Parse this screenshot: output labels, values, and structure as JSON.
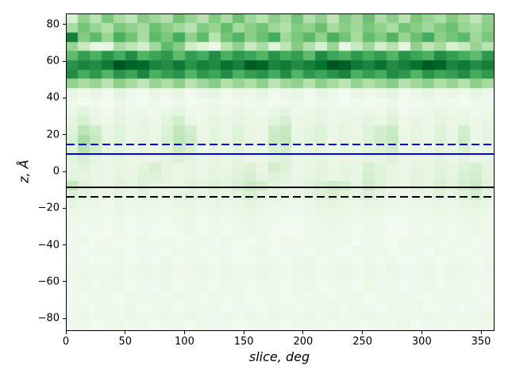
{
  "chart_data": {
    "type": "heatmap",
    "title": "",
    "xlabel": "slice, deg",
    "ylabel": "z, Å",
    "xlim": [
      0,
      360
    ],
    "ylim": [
      -86,
      86
    ],
    "x_ticks": [
      0,
      50,
      100,
      150,
      200,
      250,
      300,
      350
    ],
    "x_tick_labels": [
      "0",
      "50",
      "100",
      "150",
      "200",
      "250",
      "300",
      "350"
    ],
    "y_ticks": [
      80,
      60,
      40,
      20,
      0,
      -20,
      -40,
      -60,
      -80
    ],
    "y_tick_labels": [
      "80",
      "60",
      "40",
      "20",
      "0",
      "−20",
      "−40",
      "−60",
      "−80"
    ],
    "grid": false,
    "legend": null,
    "colormap": "Greens",
    "colormap_stops": [
      [
        0.0,
        "#f7fcf5"
      ],
      [
        0.125,
        "#e5f5e0"
      ],
      [
        0.25,
        "#c7e9c0"
      ],
      [
        0.375,
        "#a1d99b"
      ],
      [
        0.5,
        "#74c476"
      ],
      [
        0.625,
        "#41ab5d"
      ],
      [
        0.75,
        "#238b45"
      ],
      [
        0.875,
        "#006d2c"
      ],
      [
        1.0,
        "#00441b"
      ]
    ],
    "x_bin_deg": 10,
    "z_bin_angstrom": 5,
    "values_note": "rows from z=+86 (top) to z=-86 (bottom), 36 angular bins of 10 deg; intensities 0-1 estimated from pixels",
    "values": [
      [
        0.18,
        0.42,
        0.3,
        0.48,
        0.35,
        0.28,
        0.45,
        0.38,
        0.32,
        0.5,
        0.4,
        0.3,
        0.46,
        0.35,
        0.52,
        0.38,
        0.3,
        0.44,
        0.36,
        0.5,
        0.32,
        0.42,
        0.28,
        0.46,
        0.38,
        0.52,
        0.34,
        0.44,
        0.3,
        0.48,
        0.4,
        0.34,
        0.46,
        0.38,
        0.28,
        0.42
      ],
      [
        0.35,
        0.5,
        0.4,
        0.32,
        0.48,
        0.42,
        0.36,
        0.52,
        0.44,
        0.38,
        0.3,
        0.46,
        0.4,
        0.54,
        0.36,
        0.44,
        0.5,
        0.38,
        0.32,
        0.46,
        0.42,
        0.52,
        0.36,
        0.44,
        0.38,
        0.48,
        0.42,
        0.34,
        0.5,
        0.44,
        0.38,
        0.46,
        0.52,
        0.4,
        0.36,
        0.44
      ],
      [
        0.8,
        0.45,
        0.55,
        0.4,
        0.6,
        0.5,
        0.35,
        0.55,
        0.48,
        0.62,
        0.42,
        0.55,
        0.3,
        0.5,
        0.58,
        0.44,
        0.52,
        0.62,
        0.38,
        0.48,
        0.56,
        0.42,
        0.6,
        0.5,
        0.36,
        0.54,
        0.46,
        0.58,
        0.4,
        0.52,
        0.62,
        0.44,
        0.5,
        0.56,
        0.38,
        0.48
      ],
      [
        0.4,
        0.25,
        0.1,
        0.12,
        0.35,
        0.28,
        0.2,
        0.38,
        0.55,
        0.45,
        0.22,
        0.15,
        0.08,
        0.3,
        0.42,
        0.25,
        0.35,
        0.15,
        0.28,
        0.45,
        0.32,
        0.18,
        0.4,
        0.1,
        0.25,
        0.38,
        0.2,
        0.3,
        0.12,
        0.42,
        0.28,
        0.35,
        0.18,
        0.25,
        0.4,
        0.3
      ],
      [
        0.55,
        0.68,
        0.6,
        0.72,
        0.62,
        0.75,
        0.58,
        0.65,
        0.7,
        0.55,
        0.68,
        0.62,
        0.75,
        0.6,
        0.7,
        0.65,
        0.58,
        0.72,
        0.62,
        0.68,
        0.55,
        0.75,
        0.65,
        0.6,
        0.7,
        0.62,
        0.68,
        0.58,
        0.72,
        0.65,
        0.6,
        0.75,
        0.68,
        0.62,
        0.55,
        0.7
      ],
      [
        0.72,
        0.78,
        0.75,
        0.82,
        0.95,
        0.9,
        0.88,
        0.78,
        0.75,
        0.82,
        0.72,
        0.8,
        0.76,
        0.85,
        0.8,
        0.93,
        0.9,
        0.78,
        0.82,
        0.75,
        0.8,
        0.85,
        0.95,
        0.92,
        0.82,
        0.78,
        0.85,
        0.75,
        0.8,
        0.85,
        0.93,
        0.9,
        0.78,
        0.82,
        0.75,
        0.8
      ],
      [
        0.75,
        0.62,
        0.7,
        0.58,
        0.72,
        0.65,
        0.78,
        0.6,
        0.68,
        0.72,
        0.58,
        0.7,
        0.65,
        0.75,
        0.6,
        0.68,
        0.72,
        0.62,
        0.75,
        0.58,
        0.7,
        0.65,
        0.72,
        0.78,
        0.6,
        0.68,
        0.62,
        0.75,
        0.7,
        0.58,
        0.72,
        0.65,
        0.68,
        0.75,
        0.62,
        0.7
      ],
      [
        0.42,
        0.35,
        0.4,
        0.3,
        0.44,
        0.36,
        0.28,
        0.4,
        0.34,
        0.43,
        0.3,
        0.38,
        0.45,
        0.32,
        0.4,
        0.34,
        0.43,
        0.29,
        0.38,
        0.42,
        0.31,
        0.43,
        0.36,
        0.29,
        0.41,
        0.33,
        0.39,
        0.45,
        0.31,
        0.38,
        0.43,
        0.34,
        0.4,
        0.31,
        0.43,
        0.36
      ],
      [
        0.12,
        0.07,
        0.1,
        0.05,
        0.13,
        0.08,
        0.04,
        0.1,
        0.07,
        0.12,
        0.05,
        0.09,
        0.13,
        0.06,
        0.1,
        0.08,
        0.12,
        0.04,
        0.09,
        0.11,
        0.06,
        0.12,
        0.08,
        0.04,
        0.1,
        0.07,
        0.09,
        0.13,
        0.05,
        0.09,
        0.12,
        0.07,
        0.09,
        0.05,
        0.11,
        0.08
      ],
      [
        0.07,
        0.04,
        0.06,
        0.03,
        0.08,
        0.05,
        0.03,
        0.06,
        0.04,
        0.07,
        0.03,
        0.05,
        0.08,
        0.04,
        0.06,
        0.05,
        0.07,
        0.03,
        0.05,
        0.07,
        0.04,
        0.07,
        0.05,
        0.03,
        0.06,
        0.04,
        0.05,
        0.08,
        0.03,
        0.05,
        0.07,
        0.05,
        0.05,
        0.03,
        0.06,
        0.05
      ],
      [
        0.09,
        0.14,
        0.08,
        0.05,
        0.1,
        0.06,
        0.08,
        0.05,
        0.09,
        0.13,
        0.07,
        0.05,
        0.09,
        0.06,
        0.1,
        0.07,
        0.05,
        0.09,
        0.12,
        0.06,
        0.08,
        0.1,
        0.05,
        0.08,
        0.06,
        0.09,
        0.07,
        0.12,
        0.05,
        0.08,
        0.06,
        0.1,
        0.07,
        0.09,
        0.05,
        0.08
      ],
      [
        0.12,
        0.18,
        0.1,
        0.07,
        0.12,
        0.08,
        0.1,
        0.07,
        0.14,
        0.2,
        0.09,
        0.07,
        0.11,
        0.08,
        0.12,
        0.09,
        0.07,
        0.14,
        0.18,
        0.08,
        0.1,
        0.12,
        0.07,
        0.1,
        0.08,
        0.12,
        0.09,
        0.16,
        0.07,
        0.1,
        0.08,
        0.12,
        0.09,
        0.11,
        0.07,
        0.1
      ],
      [
        0.15,
        0.28,
        0.22,
        0.1,
        0.14,
        0.09,
        0.12,
        0.08,
        0.16,
        0.26,
        0.2,
        0.08,
        0.13,
        0.09,
        0.15,
        0.1,
        0.08,
        0.22,
        0.25,
        0.09,
        0.12,
        0.15,
        0.08,
        0.12,
        0.09,
        0.15,
        0.2,
        0.24,
        0.08,
        0.12,
        0.09,
        0.15,
        0.1,
        0.2,
        0.08,
        0.12
      ],
      [
        0.18,
        0.35,
        0.25,
        0.12,
        0.15,
        0.1,
        0.13,
        0.09,
        0.18,
        0.28,
        0.22,
        0.09,
        0.14,
        0.1,
        0.16,
        0.11,
        0.09,
        0.24,
        0.26,
        0.1,
        0.13,
        0.16,
        0.09,
        0.13,
        0.1,
        0.16,
        0.22,
        0.25,
        0.09,
        0.13,
        0.1,
        0.16,
        0.11,
        0.22,
        0.09,
        0.13
      ],
      [
        0.15,
        0.3,
        0.2,
        0.1,
        0.13,
        0.08,
        0.11,
        0.08,
        0.14,
        0.22,
        0.17,
        0.08,
        0.12,
        0.08,
        0.13,
        0.09,
        0.08,
        0.18,
        0.2,
        0.08,
        0.11,
        0.13,
        0.08,
        0.11,
        0.08,
        0.13,
        0.17,
        0.2,
        0.08,
        0.11,
        0.08,
        0.13,
        0.09,
        0.17,
        0.08,
        0.11
      ],
      [
        0.14,
        0.18,
        0.12,
        0.09,
        0.12,
        0.08,
        0.1,
        0.08,
        0.12,
        0.16,
        0.12,
        0.08,
        0.11,
        0.08,
        0.12,
        0.09,
        0.08,
        0.14,
        0.15,
        0.08,
        0.1,
        0.12,
        0.08,
        0.1,
        0.08,
        0.12,
        0.12,
        0.15,
        0.08,
        0.1,
        0.08,
        0.12,
        0.09,
        0.13,
        0.08,
        0.1
      ],
      [
        0.12,
        0.15,
        0.1,
        0.08,
        0.11,
        0.09,
        0.14,
        0.18,
        0.12,
        0.09,
        0.11,
        0.08,
        0.12,
        0.1,
        0.14,
        0.16,
        0.1,
        0.2,
        0.16,
        0.09,
        0.11,
        0.13,
        0.09,
        0.12,
        0.1,
        0.18,
        0.14,
        0.11,
        0.09,
        0.12,
        0.1,
        0.14,
        0.11,
        0.16,
        0.18,
        0.12
      ],
      [
        0.14,
        0.12,
        0.1,
        0.09,
        0.12,
        0.1,
        0.15,
        0.16,
        0.11,
        0.09,
        0.12,
        0.09,
        0.13,
        0.11,
        0.15,
        0.18,
        0.12,
        0.16,
        0.12,
        0.09,
        0.11,
        0.14,
        0.1,
        0.13,
        0.11,
        0.2,
        0.15,
        0.1,
        0.09,
        0.13,
        0.11,
        0.15,
        0.12,
        0.18,
        0.2,
        0.13
      ],
      [
        0.26,
        0.16,
        0.12,
        0.1,
        0.14,
        0.11,
        0.16,
        0.13,
        0.11,
        0.1,
        0.14,
        0.12,
        0.16,
        0.13,
        0.18,
        0.24,
        0.2,
        0.14,
        0.12,
        0.1,
        0.15,
        0.18,
        0.22,
        0.2,
        0.13,
        0.22,
        0.16,
        0.11,
        0.1,
        0.14,
        0.12,
        0.18,
        0.14,
        0.2,
        0.24,
        0.15
      ],
      [
        0.16,
        0.12,
        0.1,
        0.08,
        0.12,
        0.09,
        0.13,
        0.11,
        0.09,
        0.12,
        0.15,
        0.1,
        0.13,
        0.11,
        0.14,
        0.18,
        0.14,
        0.11,
        0.1,
        0.08,
        0.12,
        0.16,
        0.18,
        0.14,
        0.11,
        0.16,
        0.12,
        0.09,
        0.08,
        0.12,
        0.1,
        0.14,
        0.11,
        0.16,
        0.18,
        0.12
      ],
      [
        0.11,
        0.08,
        0.09,
        0.06,
        0.1,
        0.07,
        0.09,
        0.08,
        0.06,
        0.09,
        0.11,
        0.07,
        0.1,
        0.08,
        0.1,
        0.12,
        0.09,
        0.08,
        0.07,
        0.06,
        0.09,
        0.11,
        0.12,
        0.1,
        0.08,
        0.11,
        0.09,
        0.07,
        0.06,
        0.09,
        0.08,
        0.1,
        0.08,
        0.11,
        0.12,
        0.09
      ],
      [
        0.08,
        0.06,
        0.07,
        0.05,
        0.08,
        0.05,
        0.07,
        0.06,
        0.05,
        0.07,
        0.09,
        0.05,
        0.08,
        0.06,
        0.08,
        0.09,
        0.07,
        0.06,
        0.05,
        0.05,
        0.07,
        0.08,
        0.09,
        0.08,
        0.06,
        0.08,
        0.07,
        0.05,
        0.05,
        0.07,
        0.06,
        0.08,
        0.06,
        0.08,
        0.09,
        0.07
      ],
      [
        0.07,
        0.05,
        0.06,
        0.04,
        0.07,
        0.04,
        0.06,
        0.05,
        0.04,
        0.06,
        0.08,
        0.04,
        0.07,
        0.05,
        0.07,
        0.08,
        0.06,
        0.05,
        0.04,
        0.04,
        0.06,
        0.07,
        0.08,
        0.07,
        0.05,
        0.07,
        0.06,
        0.04,
        0.04,
        0.06,
        0.05,
        0.07,
        0.05,
        0.07,
        0.08,
        0.06
      ],
      [
        0.06,
        0.04,
        0.05,
        0.03,
        0.06,
        0.04,
        0.05,
        0.04,
        0.03,
        0.05,
        0.07,
        0.04,
        0.06,
        0.04,
        0.06,
        0.07,
        0.05,
        0.04,
        0.03,
        0.03,
        0.05,
        0.06,
        0.07,
        0.06,
        0.04,
        0.06,
        0.05,
        0.03,
        0.03,
        0.05,
        0.04,
        0.06,
        0.04,
        0.06,
        0.07,
        0.05
      ],
      [
        0.05,
        0.07,
        0.04,
        0.06,
        0.04,
        0.05,
        0.07,
        0.04,
        0.06,
        0.04,
        0.05,
        0.06,
        0.04,
        0.07,
        0.05,
        0.04,
        0.06,
        0.05,
        0.07,
        0.04,
        0.06,
        0.04,
        0.05,
        0.07,
        0.04,
        0.06,
        0.05,
        0.04,
        0.07,
        0.05,
        0.06,
        0.04,
        0.05,
        0.06,
        0.04,
        0.06
      ],
      [
        0.06,
        0.04,
        0.06,
        0.05,
        0.07,
        0.04,
        0.05,
        0.06,
        0.04,
        0.07,
        0.05,
        0.04,
        0.06,
        0.05,
        0.04,
        0.06,
        0.07,
        0.04,
        0.05,
        0.06,
        0.04,
        0.06,
        0.05,
        0.04,
        0.07,
        0.05,
        0.06,
        0.04,
        0.05,
        0.06,
        0.04,
        0.07,
        0.05,
        0.04,
        0.06,
        0.05
      ],
      [
        0.05,
        0.06,
        0.04,
        0.05,
        0.06,
        0.04,
        0.06,
        0.05,
        0.07,
        0.04,
        0.05,
        0.06,
        0.04,
        0.06,
        0.05,
        0.04,
        0.06,
        0.05,
        0.04,
        0.06,
        0.07,
        0.04,
        0.05,
        0.06,
        0.04,
        0.06,
        0.05,
        0.07,
        0.04,
        0.05,
        0.06,
        0.04,
        0.06,
        0.05,
        0.04,
        0.06
      ],
      [
        0.07,
        0.05,
        0.08,
        0.06,
        0.07,
        0.05,
        0.08,
        0.06,
        0.09,
        0.05,
        0.07,
        0.08,
        0.05,
        0.08,
        0.06,
        0.05,
        0.08,
        0.07,
        0.05,
        0.08,
        0.09,
        0.05,
        0.07,
        0.08,
        0.05,
        0.08,
        0.06,
        0.09,
        0.05,
        0.07,
        0.08,
        0.05,
        0.08,
        0.07,
        0.05,
        0.08
      ],
      [
        0.06,
        0.08,
        0.05,
        0.07,
        0.08,
        0.05,
        0.07,
        0.06,
        0.08,
        0.05,
        0.06,
        0.08,
        0.05,
        0.07,
        0.06,
        0.05,
        0.08,
        0.06,
        0.05,
        0.07,
        0.08,
        0.05,
        0.06,
        0.07,
        0.05,
        0.08,
        0.06,
        0.07,
        0.05,
        0.06,
        0.08,
        0.05,
        0.07,
        0.06,
        0.05,
        0.07
      ],
      [
        0.05,
        0.07,
        0.04,
        0.06,
        0.07,
        0.04,
        0.06,
        0.05,
        0.07,
        0.04,
        0.05,
        0.07,
        0.04,
        0.06,
        0.05,
        0.04,
        0.07,
        0.05,
        0.04,
        0.06,
        0.07,
        0.04,
        0.05,
        0.06,
        0.04,
        0.07,
        0.05,
        0.06,
        0.04,
        0.05,
        0.07,
        0.04,
        0.06,
        0.05,
        0.04,
        0.06
      ],
      [
        0.06,
        0.04,
        0.06,
        0.05,
        0.04,
        0.06,
        0.05,
        0.07,
        0.04,
        0.06,
        0.05,
        0.04,
        0.06,
        0.05,
        0.07,
        0.04,
        0.05,
        0.06,
        0.04,
        0.06,
        0.05,
        0.07,
        0.04,
        0.05,
        0.06,
        0.04,
        0.06,
        0.05,
        0.07,
        0.04,
        0.05,
        0.06,
        0.04,
        0.06,
        0.05,
        0.04
      ],
      [
        0.05,
        0.06,
        0.04,
        0.06,
        0.05,
        0.07,
        0.04,
        0.05,
        0.06,
        0.04,
        0.06,
        0.05,
        0.07,
        0.04,
        0.05,
        0.06,
        0.04,
        0.06,
        0.05,
        0.04,
        0.06,
        0.05,
        0.07,
        0.04,
        0.06,
        0.05,
        0.04,
        0.06,
        0.05,
        0.07,
        0.04,
        0.05,
        0.06,
        0.04,
        0.06,
        0.05
      ],
      [
        0.06,
        0.08,
        0.05,
        0.07,
        0.06,
        0.08,
        0.05,
        0.06,
        0.07,
        0.05,
        0.08,
        0.06,
        0.05,
        0.07,
        0.06,
        0.08,
        0.05,
        0.07,
        0.06,
        0.05,
        0.08,
        0.06,
        0.07,
        0.05,
        0.06,
        0.08,
        0.05,
        0.07,
        0.06,
        0.05,
        0.08,
        0.06,
        0.05,
        0.07,
        0.06,
        0.08
      ],
      [
        0.05,
        0.06,
        0.04,
        0.05,
        0.07,
        0.05,
        0.06,
        0.04,
        0.05,
        0.06,
        0.04,
        0.07,
        0.05,
        0.06,
        0.04,
        0.05,
        0.06,
        0.05,
        0.04,
        0.06,
        0.05,
        0.07,
        0.04,
        0.06,
        0.05,
        0.04,
        0.06,
        0.05,
        0.07,
        0.04,
        0.06,
        0.05,
        0.04,
        0.06,
        0.05,
        0.06
      ]
    ],
    "hlines": [
      {
        "z": 15,
        "color": "#0000ff",
        "style": "dashed"
      },
      {
        "z": 10,
        "color": "#0000ff",
        "style": "solid"
      },
      {
        "z": -8,
        "color": "#000000",
        "style": "solid"
      },
      {
        "z": -13.5,
        "color": "#000000",
        "style": "dashed"
      }
    ]
  },
  "colors": {
    "background": "#ffffff",
    "spine": "#000000",
    "text": "#000000"
  }
}
